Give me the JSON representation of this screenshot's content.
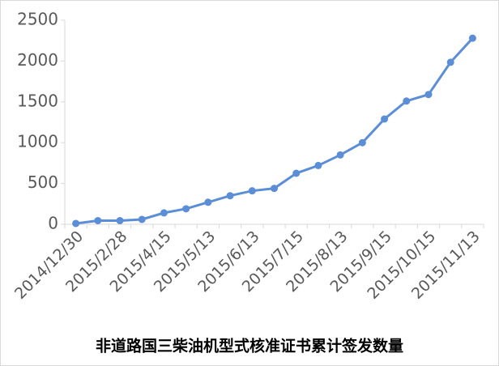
{
  "chart_data": {
    "type": "line",
    "title": "非道路国三柴油机型式核准证书累计签发数量",
    "categories": [
      "2014/12/30",
      null,
      "2015/2/28",
      null,
      "2015/4/15",
      null,
      "2015/5/13",
      null,
      "2015/6/13",
      null,
      "2015/7/15",
      null,
      "2015/8/13",
      null,
      "2015/9/15",
      null,
      "2015/10/15",
      null,
      "2015/11/13"
    ],
    "series": [
      {
        "name": "累计签发数量",
        "color": "#5b8ed6",
        "values": [
          10,
          45,
          45,
          60,
          140,
          190,
          270,
          350,
          410,
          440,
          625,
          720,
          850,
          1000,
          1290,
          1510,
          1590,
          1985,
          2280
        ]
      }
    ],
    "ylim": [
      0,
      2500
    ],
    "yticks": [
      0,
      500,
      1000,
      1500,
      2000,
      2500
    ]
  }
}
